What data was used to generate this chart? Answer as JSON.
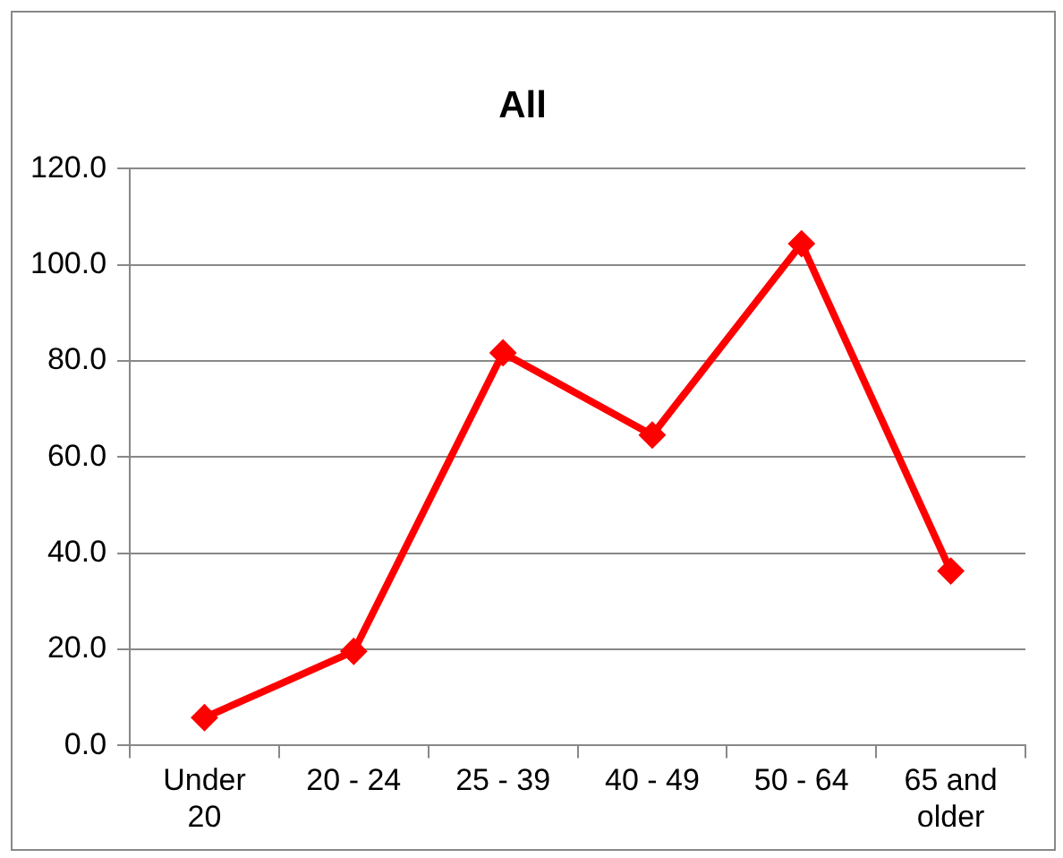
{
  "chart_data": {
    "type": "line",
    "title": "All",
    "categories": [
      "Under 20",
      "20 - 24",
      "25 - 39",
      "40 - 49",
      "50 - 64",
      "65 and older"
    ],
    "series": [
      {
        "color": "#ff0000",
        "values": [
          5.8,
          19.6,
          81.7,
          64.6,
          104.4,
          36.3
        ]
      }
    ],
    "ylim": [
      0,
      120
    ],
    "yticks": [
      {
        "value": 0,
        "label": "0.0"
      },
      {
        "value": 20,
        "label": "20.0"
      },
      {
        "value": 40,
        "label": "40.0"
      },
      {
        "value": 60,
        "label": "60.0"
      },
      {
        "value": 80,
        "label": "80.0"
      },
      {
        "value": 100,
        "label": "100.0"
      },
      {
        "value": 120,
        "label": "120.0"
      }
    ],
    "grid": "y",
    "legend": false,
    "marker": "diamond",
    "line_style": "solid"
  }
}
